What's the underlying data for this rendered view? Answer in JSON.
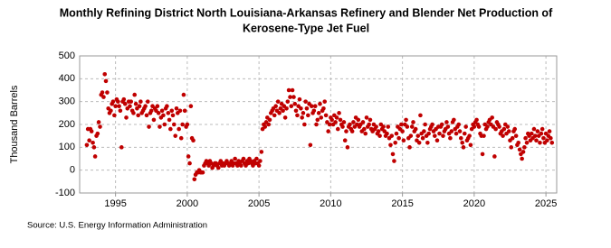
{
  "chart_data": {
    "type": "scatter",
    "title": [
      "Monthly Refining District North Louisiana-Arkansas Refinery and Blender Net Production of",
      "Kerosene-Type Jet Fuel"
    ],
    "y_label": "Thousand Barrels",
    "source": "Source: U.S. Energy Information Administration",
    "color": "#c00000",
    "grid": true,
    "xlim": [
      1992.5,
      2025.75
    ],
    "xticks": [
      1995,
      2000,
      2005,
      2010,
      2015,
      2020,
      2025
    ],
    "ylim": [
      -100,
      500
    ],
    "yticks": [
      -100,
      0,
      100,
      200,
      300,
      400,
      500
    ],
    "x": [
      1993,
      1993.08,
      1993.17,
      1993.25,
      1993.33,
      1993.42,
      1993.5,
      1993.58,
      1993.67,
      1993.75,
      1993.83,
      1993.92,
      1994,
      1994.08,
      1994.17,
      1994.25,
      1994.33,
      1994.42,
      1994.5,
      1994.58,
      1994.67,
      1994.75,
      1994.83,
      1994.92,
      1995,
      1995.08,
      1995.17,
      1995.25,
      1995.33,
      1995.42,
      1995.5,
      1995.58,
      1995.67,
      1995.75,
      1995.83,
      1995.92,
      1996,
      1996.08,
      1996.17,
      1996.25,
      1996.33,
      1996.42,
      1996.5,
      1996.58,
      1996.67,
      1996.75,
      1996.83,
      1996.92,
      1997,
      1997.08,
      1997.17,
      1997.25,
      1997.33,
      1997.42,
      1997.5,
      1997.58,
      1997.67,
      1997.75,
      1997.83,
      1997.92,
      1998,
      1998.08,
      1998.17,
      1998.25,
      1998.33,
      1998.42,
      1998.5,
      1998.58,
      1998.67,
      1998.75,
      1998.83,
      1998.92,
      1999,
      1999.08,
      1999.17,
      1999.25,
      1999.33,
      1999.42,
      1999.5,
      1999.58,
      1999.67,
      1999.75,
      1999.83,
      1999.92,
      2000,
      2000.08,
      2000.17,
      2000.25,
      2000.33,
      2000.42,
      2000.5,
      2000.58,
      2000.67,
      2000.75,
      2000.83,
      2000.92,
      2001,
      2001.08,
      2001.17,
      2001.25,
      2001.33,
      2001.42,
      2001.5,
      2001.58,
      2001.67,
      2001.75,
      2001.83,
      2001.92,
      2002,
      2002.08,
      2002.17,
      2002.25,
      2002.33,
      2002.42,
      2002.5,
      2002.58,
      2002.67,
      2002.75,
      2002.83,
      2002.92,
      2003,
      2003.08,
      2003.17,
      2003.25,
      2003.33,
      2003.42,
      2003.5,
      2003.58,
      2003.67,
      2003.75,
      2003.83,
      2003.92,
      2004,
      2004.08,
      2004.17,
      2004.25,
      2004.33,
      2004.42,
      2004.5,
      2004.58,
      2004.67,
      2004.75,
      2004.83,
      2004.92,
      2005,
      2005.08,
      2005.17,
      2005.25,
      2005.33,
      2005.42,
      2005.5,
      2005.58,
      2005.67,
      2005.75,
      2005.83,
      2005.92,
      2006,
      2006.08,
      2006.17,
      2006.25,
      2006.33,
      2006.42,
      2006.5,
      2006.58,
      2006.67,
      2006.75,
      2006.83,
      2006.92,
      2007,
      2007.08,
      2007.17,
      2007.25,
      2007.33,
      2007.42,
      2007.5,
      2007.58,
      2007.67,
      2007.75,
      2007.83,
      2007.92,
      2008,
      2008.08,
      2008.17,
      2008.25,
      2008.33,
      2008.42,
      2008.5,
      2008.58,
      2008.67,
      2008.75,
      2008.83,
      2008.92,
      2009,
      2009.08,
      2009.17,
      2009.25,
      2009.33,
      2009.42,
      2009.5,
      2009.58,
      2009.67,
      2009.75,
      2009.83,
      2009.92,
      2010,
      2010.08,
      2010.17,
      2010.25,
      2010.33,
      2010.42,
      2010.5,
      2010.58,
      2010.67,
      2010.75,
      2010.83,
      2010.92,
      2011,
      2011.08,
      2011.17,
      2011.25,
      2011.33,
      2011.42,
      2011.5,
      2011.58,
      2011.67,
      2011.75,
      2011.83,
      2011.92,
      2012,
      2012.08,
      2012.17,
      2012.25,
      2012.33,
      2012.42,
      2012.5,
      2012.58,
      2012.67,
      2012.75,
      2012.83,
      2012.92,
      2013,
      2013.08,
      2013.17,
      2013.25,
      2013.33,
      2013.42,
      2013.5,
      2013.58,
      2013.67,
      2013.75,
      2013.83,
      2013.92,
      2014,
      2014.08,
      2014.17,
      2014.25,
      2014.33,
      2014.42,
      2014.5,
      2014.58,
      2014.67,
      2014.75,
      2014.83,
      2014.92,
      2015,
      2015.08,
      2015.17,
      2015.25,
      2015.33,
      2015.42,
      2015.5,
      2015.58,
      2015.67,
      2015.75,
      2015.83,
      2015.92,
      2016,
      2016.08,
      2016.17,
      2016.25,
      2016.33,
      2016.42,
      2016.5,
      2016.58,
      2016.67,
      2016.75,
      2016.83,
      2016.92,
      2017,
      2017.08,
      2017.17,
      2017.25,
      2017.33,
      2017.42,
      2017.5,
      2017.58,
      2017.67,
      2017.75,
      2017.83,
      2017.92,
      2018,
      2018.08,
      2018.17,
      2018.25,
      2018.33,
      2018.42,
      2018.5,
      2018.58,
      2018.67,
      2018.75,
      2018.83,
      2018.92,
      2019,
      2019.08,
      2019.17,
      2019.25,
      2019.33,
      2019.42,
      2019.5,
      2019.58,
      2019.67,
      2019.75,
      2019.83,
      2019.92,
      2020,
      2020.08,
      2020.17,
      2020.25,
      2020.33,
      2020.42,
      2020.5,
      2020.58,
      2020.67,
      2020.75,
      2020.83,
      2020.92,
      2021,
      2021.08,
      2021.17,
      2021.25,
      2021.33,
      2021.42,
      2021.5,
      2021.58,
      2021.67,
      2021.75,
      2021.83,
      2021.92,
      2022,
      2022.08,
      2022.17,
      2022.25,
      2022.33,
      2022.42,
      2022.5,
      2022.58,
      2022.67,
      2022.75,
      2022.83,
      2022.92,
      2023,
      2023.08,
      2023.17,
      2023.25,
      2023.33,
      2023.42,
      2023.5,
      2023.58,
      2023.67,
      2023.75,
      2023.83,
      2023.92,
      2024,
      2024.08,
      2024.17,
      2024.25,
      2024.33,
      2024.42,
      2024.5,
      2024.58,
      2024.67,
      2024.75,
      2024.83,
      2024.92,
      2025,
      2025.08,
      2025.17,
      2025.25,
      2025.33,
      2025.42
    ],
    "values": [
      110,
      180,
      130,
      180,
      170,
      120,
      100,
      60,
      150,
      160,
      210,
      190,
      330,
      340,
      320,
      420,
      390,
      340,
      270,
      250,
      260,
      290,
      300,
      240,
      280,
      310,
      300,
      280,
      260,
      100,
      300,
      310,
      290,
      230,
      270,
      300,
      280,
      300,
      260,
      250,
      330,
      290,
      270,
      240,
      280,
      300,
      250,
      260,
      270,
      280,
      240,
      300,
      190,
      250,
      260,
      280,
      220,
      270,
      260,
      280,
      250,
      190,
      230,
      260,
      240,
      200,
      270,
      280,
      250,
      220,
      180,
      260,
      240,
      200,
      150,
      270,
      250,
      180,
      260,
      140,
      200,
      330,
      260,
      190,
      200,
      60,
      30,
      280,
      140,
      130,
      -40,
      -20,
      -10,
      -10,
      0,
      -10,
      -10,
      -10,
      20,
      30,
      40,
      30,
      20,
      40,
      30,
      10,
      20,
      30,
      30,
      20,
      10,
      30,
      40,
      20,
      30,
      20,
      30,
      40,
      30,
      20,
      30,
      40,
      20,
      30,
      50,
      30,
      20,
      40,
      30,
      20,
      40,
      50,
      30,
      20,
      40,
      30,
      50,
      40,
      30,
      20,
      40,
      30,
      50,
      30,
      20,
      40,
      80,
      180,
      200,
      190,
      210,
      230,
      200,
      220,
      250,
      260,
      270,
      240,
      280,
      260,
      300,
      250,
      270,
      290,
      260,
      280,
      230,
      270,
      300,
      350,
      320,
      280,
      350,
      320,
      290,
      260,
      240,
      280,
      310,
      270,
      230,
      250,
      200,
      300,
      270,
      240,
      290,
      110,
      280,
      250,
      260,
      280,
      200,
      220,
      250,
      290,
      230,
      260,
      270,
      300,
      240,
      210,
      170,
      200,
      230,
      220,
      200,
      240,
      210,
      230,
      180,
      250,
      220,
      200,
      190,
      210,
      130,
      170,
      100,
      190,
      200,
      180,
      170,
      210,
      190,
      230,
      200,
      220,
      190,
      200,
      170,
      210,
      180,
      160,
      230,
      190,
      200,
      220,
      180,
      170,
      200,
      180,
      190,
      160,
      170,
      150,
      200,
      180,
      190,
      170,
      150,
      160,
      190,
      140,
      110,
      150,
      70,
      40,
      120,
      160,
      190,
      140,
      180,
      200,
      170,
      130,
      200,
      220,
      190,
      140,
      100,
      150,
      190,
      210,
      170,
      180,
      130,
      150,
      120,
      240,
      160,
      140,
      170,
      200,
      150,
      120,
      160,
      180,
      190,
      200,
      170,
      150,
      180,
      130,
      190,
      160,
      190,
      200,
      150,
      170,
      180,
      210,
      190,
      160,
      140,
      170,
      210,
      220,
      180,
      160,
      190,
      200,
      170,
      140,
      120,
      100,
      160,
      190,
      130,
      140,
      150,
      110,
      180,
      200,
      190,
      210,
      220,
      200,
      190,
      160,
      150,
      70,
      150,
      200,
      180,
      190,
      210,
      220,
      200,
      230,
      190,
      60,
      180,
      210,
      200,
      190,
      160,
      170,
      150,
      180,
      200,
      160,
      190,
      170,
      130,
      100,
      140,
      170,
      180,
      150,
      110,
      120,
      90,
      70,
      50,
      80,
      100,
      140,
      120,
      160,
      150,
      130,
      160,
      140,
      180,
      150,
      130,
      170,
      150,
      120,
      160,
      180,
      140,
      120,
      160,
      130,
      150,
      170,
      140,
      120
    ]
  }
}
